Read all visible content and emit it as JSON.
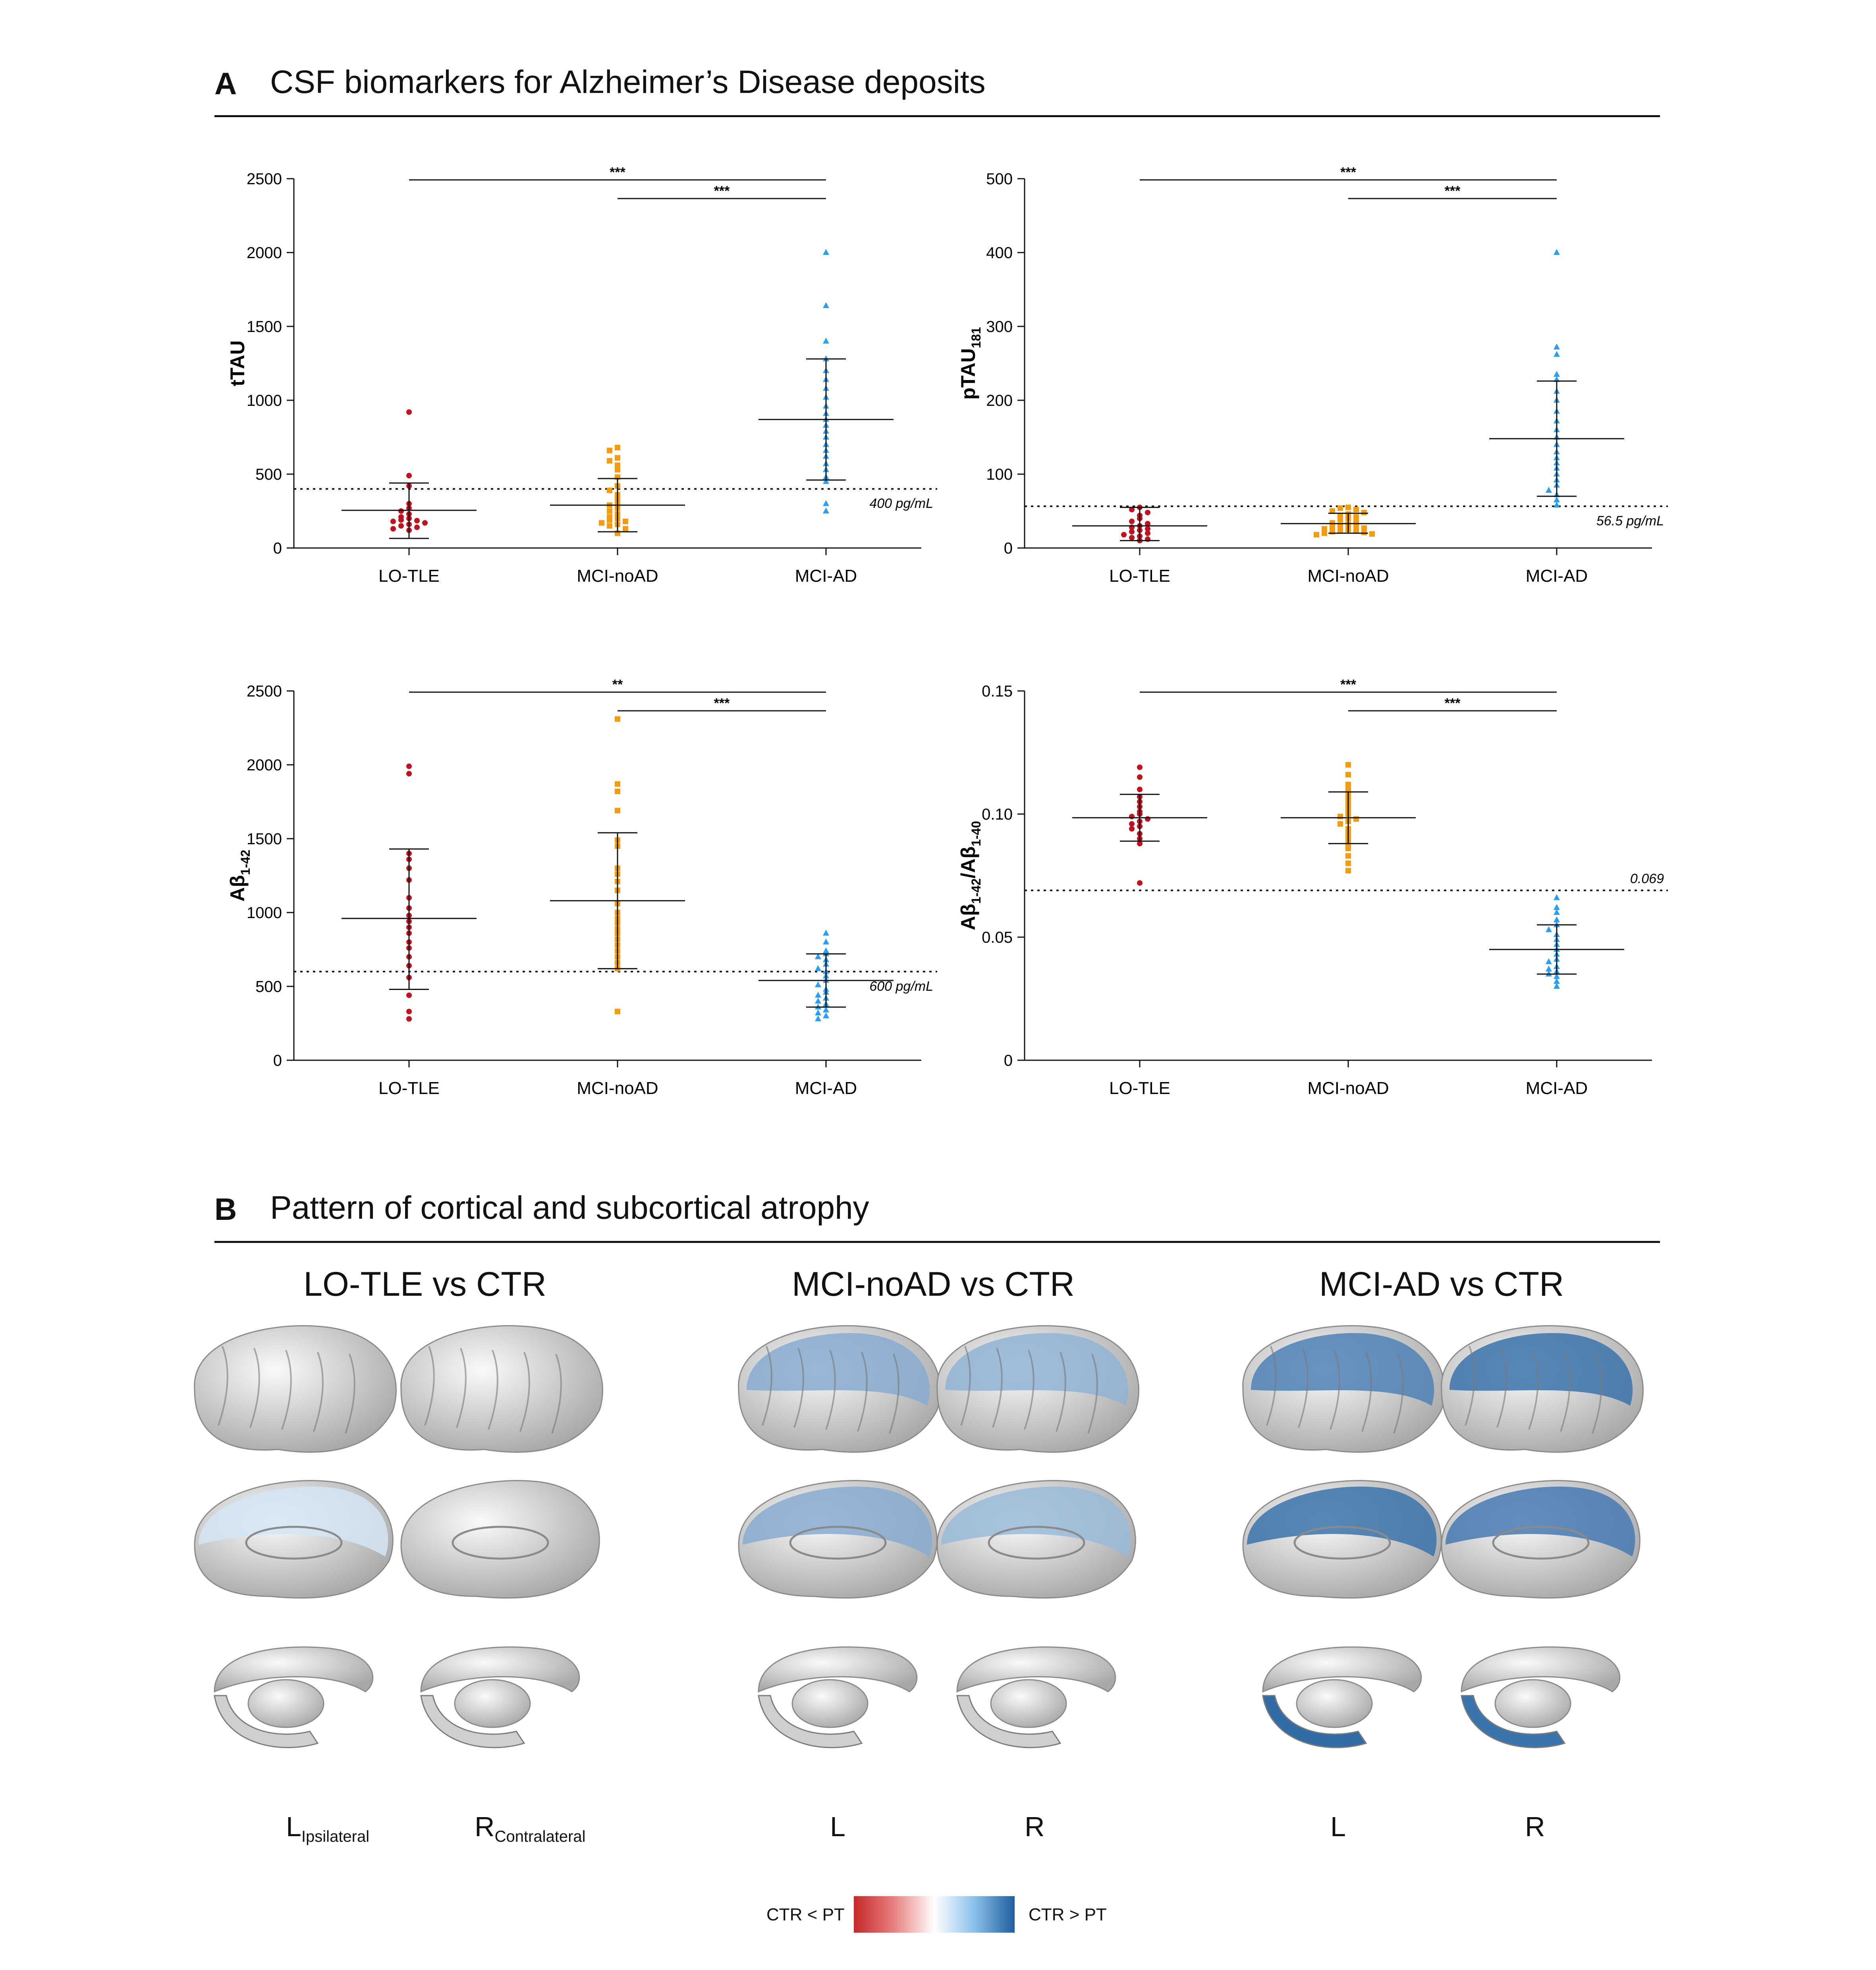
{
  "sectionA": {
    "letter": "A",
    "title": "CSF biomarkers for Alzheimer’s Disease deposits"
  },
  "sectionB": {
    "letter": "B",
    "title": "Pattern of cortical and subcortical atrophy"
  },
  "colors": {
    "LO-TLE": "#c1121f",
    "MCI-noAD": "#f39c12",
    "MCI-AD": "#2a9df4",
    "atrophy_low": "#dcecf8",
    "atrophy_high": "#1f5e9e",
    "reverse": "#c62828"
  },
  "chart_data": [
    {
      "type": "scatter",
      "ylabel": "tTAU",
      "categories": [
        "LO-TLE",
        "MCI-noAD",
        "MCI-AD"
      ],
      "ylim": [
        0,
        2500
      ],
      "yticks": [
        0,
        500,
        1000,
        1500,
        2000,
        2500
      ],
      "cutoff": {
        "value": 400,
        "label": "400 pg/mL"
      },
      "significance": [
        {
          "from": "LO-TLE",
          "to": "MCI-AD",
          "label": "***"
        },
        {
          "from": "MCI-noAD",
          "to": "MCI-AD",
          "label": "***"
        }
      ],
      "series": [
        {
          "category": "LO-TLE",
          "mean": 255,
          "sd_low": 65,
          "sd_high": 440,
          "values": [
            920,
            490,
            420,
            300,
            270,
            250,
            230,
            210,
            200,
            190,
            185,
            180,
            170,
            160,
            150,
            140,
            130,
            120
          ]
        },
        {
          "category": "MCI-noAD",
          "mean": 290,
          "sd_low": 110,
          "sd_high": 470,
          "values": [
            680,
            660,
            610,
            590,
            560,
            530,
            480,
            420,
            390,
            360,
            330,
            310,
            290,
            270,
            250,
            230,
            210,
            200,
            190,
            180,
            170,
            160,
            150,
            130,
            100
          ]
        },
        {
          "category": "MCI-AD",
          "mean": 870,
          "sd_low": 460,
          "sd_high": 1280,
          "values": [
            2000,
            1640,
            1400,
            1280,
            1200,
            1140,
            1080,
            1020,
            960,
            910,
            870,
            830,
            790,
            750,
            700,
            660,
            620,
            570,
            530,
            480,
            450,
            300,
            250
          ]
        }
      ]
    },
    {
      "type": "scatter",
      "ylabel": "pTAU",
      "ylabel_sub": "181",
      "categories": [
        "LO-TLE",
        "MCI-noAD",
        "MCI-AD"
      ],
      "ylim": [
        0,
        500
      ],
      "yticks": [
        0,
        100,
        200,
        300,
        400,
        500
      ],
      "cutoff": {
        "value": 56.5,
        "label": "56.5 pg/mL"
      },
      "significance": [
        {
          "from": "LO-TLE",
          "to": "MCI-AD",
          "label": "***"
        },
        {
          "from": "MCI-noAD",
          "to": "MCI-AD",
          "label": "***"
        }
      ],
      "series": [
        {
          "category": "LO-TLE",
          "mean": 30,
          "sd_low": 10,
          "sd_high": 55,
          "values": [
            55,
            52,
            48,
            44,
            40,
            36,
            33,
            30,
            28,
            26,
            24,
            22,
            20,
            18,
            16,
            14,
            12,
            10
          ]
        },
        {
          "category": "MCI-noAD",
          "mean": 33,
          "sd_low": 20,
          "sd_high": 47,
          "values": [
            55,
            54,
            52,
            50,
            48,
            46,
            44,
            42,
            40,
            38,
            36,
            34,
            32,
            30,
            29,
            28,
            27,
            26,
            25,
            24,
            23,
            22,
            21,
            20,
            19,
            18
          ]
        },
        {
          "category": "MCI-AD",
          "mean": 148,
          "sd_low": 70,
          "sd_high": 226,
          "values": [
            400,
            272,
            262,
            235,
            228,
            212,
            200,
            185,
            172,
            160,
            150,
            140,
            130,
            122,
            115,
            108,
            100,
            92,
            85,
            78,
            72,
            65,
            58
          ]
        }
      ]
    },
    {
      "type": "scatter",
      "ylabel": "Aβ",
      "ylabel_sub": "1-42",
      "categories": [
        "LO-TLE",
        "MCI-noAD",
        "MCI-AD"
      ],
      "ylim": [
        0,
        2500
      ],
      "yticks": [
        0,
        500,
        1000,
        1500,
        2000,
        2500
      ],
      "cutoff": {
        "value": 600,
        "label": "600 pg/mL"
      },
      "significance": [
        {
          "from": "LO-TLE",
          "to": "MCI-AD",
          "label": "**"
        },
        {
          "from": "MCI-noAD",
          "to": "MCI-AD",
          "label": "***"
        }
      ],
      "series": [
        {
          "category": "LO-TLE",
          "mean": 960,
          "sd_low": 480,
          "sd_high": 1430,
          "values": [
            1990,
            1940,
            1400,
            1360,
            1300,
            1220,
            1100,
            1030,
            980,
            940,
            900,
            860,
            800,
            760,
            700,
            640,
            560,
            440,
            330,
            280
          ]
        },
        {
          "category": "MCI-noAD",
          "mean": 1080,
          "sd_low": 620,
          "sd_high": 1540,
          "values": [
            2310,
            1870,
            1820,
            1690,
            1490,
            1450,
            1300,
            1260,
            1210,
            1150,
            1060,
            1000,
            960,
            930,
            890,
            860,
            820,
            780,
            740,
            700,
            660,
            620,
            330
          ]
        },
        {
          "category": "MCI-AD",
          "mean": 540,
          "sd_low": 360,
          "sd_high": 720,
          "values": [
            860,
            800,
            740,
            720,
            700,
            680,
            650,
            620,
            600,
            570,
            540,
            510,
            480,
            460,
            440,
            420,
            400,
            380,
            360,
            340,
            320,
            300,
            280
          ]
        }
      ]
    },
    {
      "type": "scatter",
      "ylabel": "Aβ",
      "ylabel_sub": "1-42",
      "ylabel_b": "/Aβ",
      "ylabel_sub_b": "1-40",
      "categories": [
        "LO-TLE",
        "MCI-noAD",
        "MCI-AD"
      ],
      "ylim": [
        0,
        0.15
      ],
      "yticks": [
        0,
        0.05,
        0.1,
        0.15
      ],
      "ytick_labels": [
        "0",
        "0.05",
        "0.10",
        "0.15"
      ],
      "cutoff": {
        "value": 0.069,
        "label": "0.069"
      },
      "significance": [
        {
          "from": "LO-TLE",
          "to": "MCI-AD",
          "label": "***"
        },
        {
          "from": "MCI-noAD",
          "to": "MCI-AD",
          "label": "***"
        }
      ],
      "series": [
        {
          "category": "LO-TLE",
          "mean": 0.0985,
          "sd_low": 0.089,
          "sd_high": 0.108,
          "values": [
            0.119,
            0.115,
            0.11,
            0.107,
            0.105,
            0.103,
            0.101,
            0.1,
            0.099,
            0.098,
            0.097,
            0.096,
            0.095,
            0.094,
            0.092,
            0.09,
            0.088,
            0.072
          ]
        },
        {
          "category": "MCI-noAD",
          "mean": 0.0985,
          "sd_low": 0.088,
          "sd_high": 0.109,
          "values": [
            0.12,
            0.116,
            0.112,
            0.11,
            0.108,
            0.106,
            0.104,
            0.102,
            0.1,
            0.099,
            0.098,
            0.097,
            0.096,
            0.094,
            0.092,
            0.09,
            0.088,
            0.086,
            0.083,
            0.08,
            0.077
          ]
        },
        {
          "category": "MCI-AD",
          "mean": 0.045,
          "sd_low": 0.035,
          "sd_high": 0.055,
          "values": [
            0.066,
            0.062,
            0.06,
            0.057,
            0.055,
            0.053,
            0.051,
            0.049,
            0.047,
            0.045,
            0.043,
            0.041,
            0.04,
            0.038,
            0.037,
            0.036,
            0.035,
            0.034,
            0.032,
            0.03
          ]
        }
      ]
    }
  ],
  "brain": {
    "groups": [
      {
        "title": "LO-TLE vs CTR",
        "left": "L",
        "left_sub": "Ipsilateral",
        "right": "R",
        "right_sub": "Contralateral",
        "intensity": [
          0.0,
          0.0,
          0.05,
          0.0,
          0.0,
          0.0
        ]
      },
      {
        "title": "MCI-noAD vs CTR",
        "left": "L",
        "left_sub": "",
        "right": "R",
        "right_sub": "",
        "intensity": [
          0.45,
          0.4,
          0.45,
          0.35,
          0.0,
          0.0
        ]
      },
      {
        "title": "MCI-AD vs CTR",
        "left": "L",
        "left_sub": "",
        "right": "R",
        "right_sub": "",
        "intensity": [
          0.75,
          0.85,
          0.85,
          0.8,
          0.9,
          0.85
        ]
      }
    ],
    "legend": {
      "left": "CTR < PT",
      "right": "CTR > PT"
    }
  }
}
